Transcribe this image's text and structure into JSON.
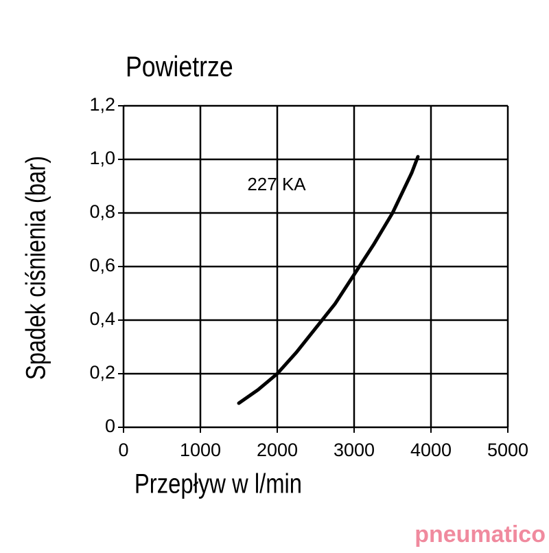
{
  "chart_data": {
    "type": "line",
    "title": "Powietrze",
    "x_label": "Przepływ w l/min",
    "y_label": "Spadek ciśnienia (bar)",
    "annotation": "227 KA",
    "x": [
      1500,
      1750,
      2000,
      2250,
      2500,
      2750,
      3000,
      3250,
      3500,
      3750,
      3830
    ],
    "series": [
      {
        "color": "#000000",
        "values": [
          0.09,
          0.14,
          0.2,
          0.28,
          0.37,
          0.46,
          0.57,
          0.68,
          0.8,
          0.95,
          1.01
        ]
      }
    ],
    "xlim": [
      0,
      5000
    ],
    "xticks": [
      0,
      1000,
      2000,
      3000,
      4000,
      5000
    ],
    "ylim": [
      0,
      1.2
    ],
    "yticks": [
      0,
      {
        "value": 0.2,
        "label": "0,2"
      },
      {
        "value": 0.4,
        "label": "0,4"
      },
      {
        "value": 0.6,
        "label": "0,6"
      },
      {
        "value": 0.8,
        "label": "0,8"
      },
      {
        "value": 1.0,
        "label": "1,0"
      },
      {
        "value": 1.2,
        "label": "1,2"
      }
    ],
    "grid": true
  },
  "logo": "pneumatico"
}
